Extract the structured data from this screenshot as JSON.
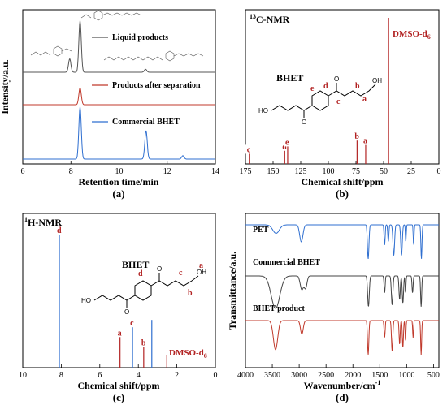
{
  "chart_data": [
    {
      "id": "a",
      "type": "line",
      "panel_label": "(a)",
      "xlabel": "Retention time/min",
      "ylabel": "Intensity/a.u.",
      "xlim": [
        6,
        14
      ],
      "xticks": [
        "6",
        "8",
        "10",
        "12",
        "14"
      ],
      "series": [
        {
          "name": "Liquid products",
          "color": "#555555",
          "peaks": [
            [
              7.95,
              0.22
            ],
            [
              8.38,
              0.85
            ],
            [
              11.1,
              0.05
            ]
          ]
        },
        {
          "name": "Products after separation",
          "color": "#c0392b",
          "peaks": [
            [
              8.38,
              0.52
            ]
          ]
        },
        {
          "name": "Commercial BHET",
          "color": "#2f6fd0",
          "peaks": [
            [
              8.38,
              0.92
            ],
            [
              11.12,
              0.5
            ],
            [
              12.65,
              0.06
            ]
          ]
        }
      ]
    },
    {
      "id": "b",
      "type": "bar",
      "panel_label": "(b)",
      "title": "13C-NMR",
      "xlabel": "Chemical shift/ppm",
      "xlim": [
        175,
        0
      ],
      "xticks": [
        "175",
        "150",
        "125",
        "100",
        "75",
        "50",
        "25",
        "0"
      ],
      "molecule_name": "BHET",
      "solvent_label": "DMSO-d6",
      "peaks": [
        {
          "ppm": 171.5,
          "h": 0.12,
          "label": "c"
        },
        {
          "ppm": 139.5,
          "h": 0.14,
          "label": "d"
        },
        {
          "ppm": 136.8,
          "h": 0.17,
          "label": "e"
        },
        {
          "ppm": 74.0,
          "h": 0.21,
          "label": "b"
        },
        {
          "ppm": 66.2,
          "h": 0.18,
          "label": "a"
        },
        {
          "ppm": 45.5,
          "h": 1.0,
          "label": ""
        }
      ]
    },
    {
      "id": "c",
      "type": "bar",
      "panel_label": "(c)",
      "title": "1H-NMR",
      "xlabel": "Chemical shift/ppm",
      "xlim": [
        10,
        0
      ],
      "xticks": [
        "10",
        "8",
        "6",
        "4",
        "2",
        "0"
      ],
      "molecule_name": "BHET",
      "solvent_label": "DMSO-d6",
      "peaks": [
        {
          "ppm": 8.1,
          "h": 1.0,
          "label": "d"
        },
        {
          "ppm": 4.95,
          "h": 0.27,
          "label": "a"
        },
        {
          "ppm": 4.3,
          "h": 0.34,
          "label": "c"
        },
        {
          "ppm": 3.72,
          "h": 0.2,
          "label": "b"
        },
        {
          "ppm": 3.3,
          "h": 0.34,
          "label": ""
        },
        {
          "ppm": 2.52,
          "h": 0.09,
          "label": ""
        }
      ]
    },
    {
      "id": "d",
      "type": "line",
      "panel_label": "(d)",
      "xlabel": "Wavenumber/cm-1",
      "ylabel": "Transmittance/a.u.",
      "xlim": [
        4000,
        400
      ],
      "xticks": [
        "4000",
        "3500",
        "3000",
        "2500",
        "2000",
        "1500",
        "1000",
        "500"
      ],
      "series": [
        {
          "name": "PET",
          "color": "#2f6fd0"
        },
        {
          "name": "Commercial BHET",
          "color": "#444444"
        },
        {
          "name": "BHET product",
          "color": "#c0392b"
        }
      ]
    }
  ],
  "annotations": {
    "c13_solvent": "DMSO-d",
    "solvent_sub": "6",
    "c13_title_sup": "13",
    "c13_title_rest": "C-NMR",
    "h1_title_sup": "1",
    "h1_title_rest": "H-NMR",
    "wavenumber_unit": "Wavenumber/cm",
    "wavenumber_sup": "-1"
  },
  "structure_labels": {
    "ho": "HO",
    "oh": "OH",
    "o": "O",
    "e": "e",
    "d": "d",
    "c": "c",
    "b": "b",
    "a": "a"
  }
}
